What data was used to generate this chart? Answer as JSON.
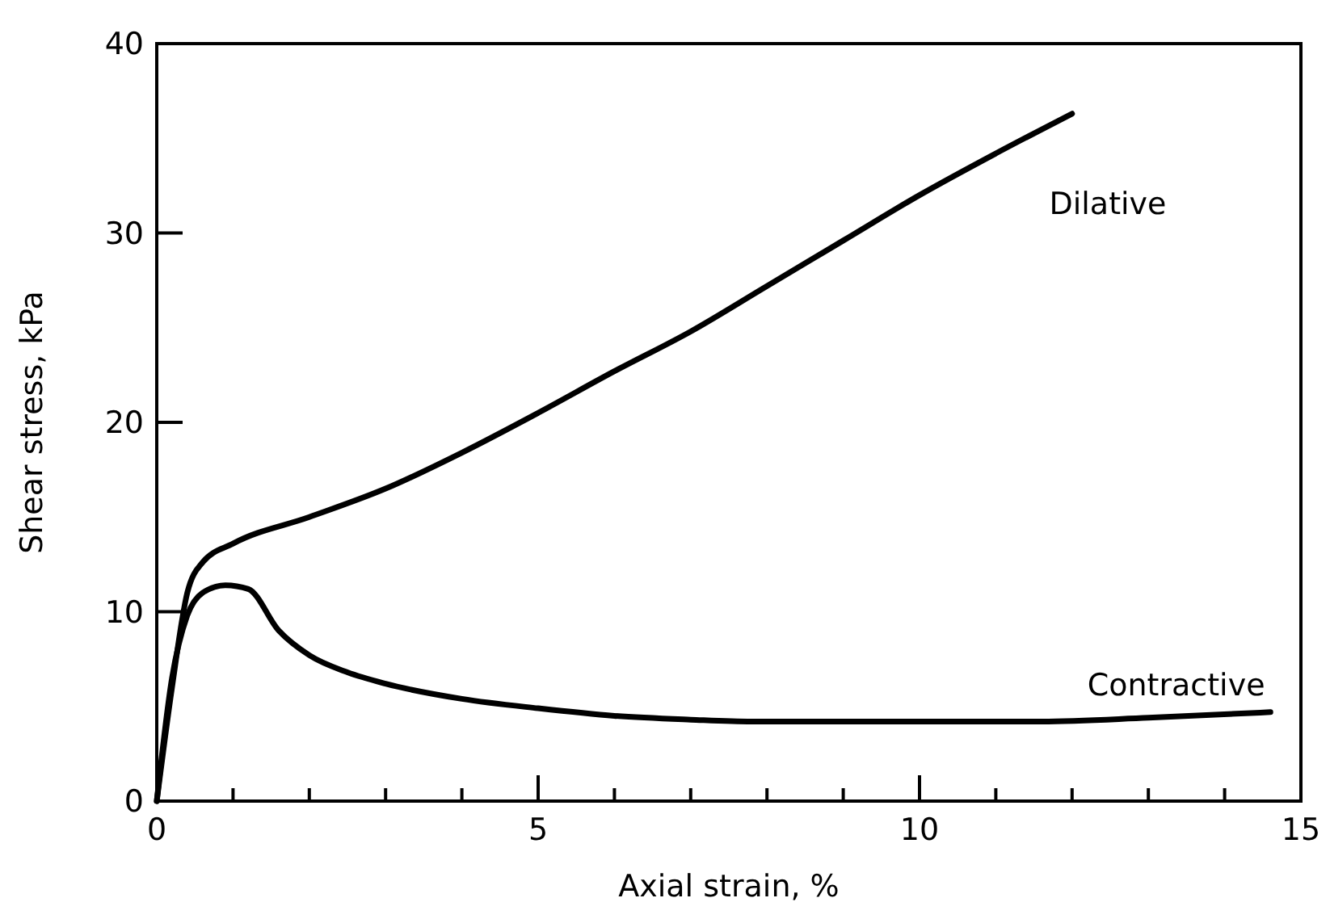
{
  "chart_data": {
    "type": "line",
    "xlabel": "Axial strain, %",
    "ylabel": "Shear stress, kPa",
    "xlim": [
      0,
      15
    ],
    "ylim": [
      0,
      40
    ],
    "xticks": [
      0,
      {
        "value": 1,
        "label": null
      },
      {
        "value": 2,
        "label": null
      },
      {
        "value": 3,
        "label": null
      },
      {
        "value": 4,
        "label": null
      },
      5,
      {
        "value": 6,
        "label": null
      },
      {
        "value": 7,
        "label": null
      },
      {
        "value": 8,
        "label": null
      },
      {
        "value": 9,
        "label": null
      },
      10,
      {
        "value": 11,
        "label": null
      },
      {
        "value": 12,
        "label": null
      },
      {
        "value": 13,
        "label": null
      },
      {
        "value": 14,
        "label": null
      },
      15
    ],
    "yticks": [
      0,
      10,
      20,
      30,
      40
    ],
    "grid": false,
    "marker": "none",
    "line_style": "solid",
    "series": [
      {
        "name": "Dilative",
        "color": "#000000",
        "x": [
          0,
          0.2,
          0.4,
          0.6,
          1,
          2,
          3,
          4,
          5,
          6,
          7,
          8,
          9,
          10,
          11,
          12
        ],
        "values": [
          0,
          6,
          11,
          12.6,
          13.6,
          15,
          16.5,
          18.4,
          20.5,
          22.7,
          24.8,
          27.2,
          29.6,
          32,
          34.2,
          36.3
        ]
      },
      {
        "name": "Contractive",
        "color": "#000000",
        "x": [
          0,
          0.2,
          0.4,
          0.6,
          0.9,
          1.2,
          1.6,
          2,
          2.5,
          3,
          4,
          5,
          6,
          7,
          7.8,
          10,
          11.6,
          13,
          14.6
        ],
        "values": [
          0,
          6.5,
          9.8,
          11,
          11.4,
          11.2,
          9,
          7.7,
          6.8,
          6.2,
          5.4,
          4.9,
          4.5,
          4.3,
          4.2,
          4.2,
          4.2,
          4.4,
          4.7
        ]
      }
    ]
  }
}
